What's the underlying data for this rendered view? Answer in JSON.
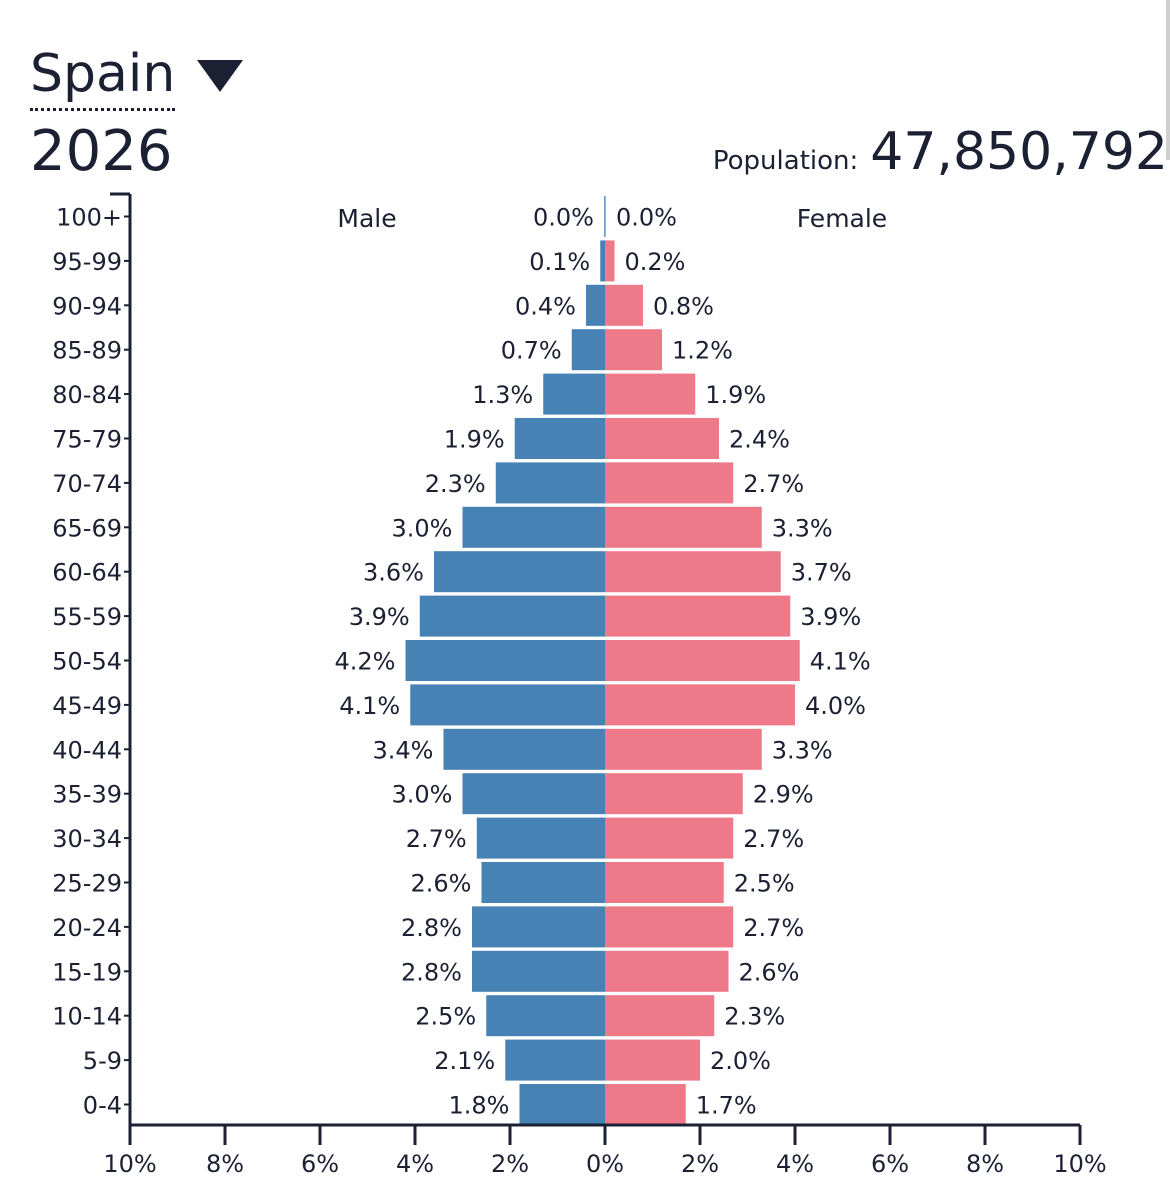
{
  "header": {
    "country": "Spain",
    "year": "2026",
    "population_label": "Population:",
    "population_value": "47,850,792"
  },
  "icons": {
    "dropdown": "caret-down-icon"
  },
  "colors": {
    "male": "#4682b4",
    "female": "#ee7989",
    "axis": "#1c2033",
    "text": "#1c2033"
  },
  "chart_data": {
    "type": "bar",
    "orientation": "horizontal",
    "subtype": "population-pyramid",
    "categories": [
      "100+",
      "95-99",
      "90-94",
      "85-89",
      "80-84",
      "75-79",
      "70-74",
      "65-69",
      "60-64",
      "55-59",
      "50-54",
      "45-49",
      "40-44",
      "35-39",
      "30-34",
      "25-29",
      "20-24",
      "15-19",
      "10-14",
      "5-9",
      "0-4"
    ],
    "series": [
      {
        "name": "Male",
        "values": [
          0.0,
          0.1,
          0.4,
          0.7,
          1.3,
          1.9,
          2.3,
          3.0,
          3.6,
          3.9,
          4.2,
          4.1,
          3.4,
          3.0,
          2.7,
          2.6,
          2.8,
          2.8,
          2.5,
          2.1,
          1.8
        ]
      },
      {
        "name": "Female",
        "values": [
          0.0,
          0.2,
          0.8,
          1.2,
          1.9,
          2.4,
          2.7,
          3.3,
          3.7,
          3.9,
          4.1,
          4.0,
          3.3,
          2.9,
          2.7,
          2.5,
          2.7,
          2.6,
          2.3,
          2.0,
          1.7
        ]
      }
    ],
    "labels": {
      "male": [
        "0.0%",
        "0.1%",
        "0.4%",
        "0.7%",
        "1.3%",
        "1.9%",
        "2.3%",
        "3.0%",
        "3.6%",
        "3.9%",
        "4.2%",
        "4.1%",
        "3.4%",
        "3.0%",
        "2.7%",
        "2.6%",
        "2.8%",
        "2.8%",
        "2.5%",
        "2.1%",
        "1.8%"
      ],
      "female": [
        "0.0%",
        "0.2%",
        "0.8%",
        "1.2%",
        "1.9%",
        "2.4%",
        "2.7%",
        "3.3%",
        "3.7%",
        "3.9%",
        "4.1%",
        "4.0%",
        "3.3%",
        "2.9%",
        "2.7%",
        "2.5%",
        "2.7%",
        "2.6%",
        "2.3%",
        "2.0%",
        "1.7%"
      ]
    },
    "xlim": [
      -10,
      10
    ],
    "xticks": [
      -10,
      -8,
      -6,
      -4,
      -2,
      0,
      2,
      4,
      6,
      8,
      10
    ],
    "xtick_labels": [
      "10%",
      "8%",
      "6%",
      "4%",
      "2%",
      "0%",
      "2%",
      "4%",
      "6%",
      "8%",
      "10%"
    ],
    "male_label": "Male",
    "female_label": "Female"
  }
}
